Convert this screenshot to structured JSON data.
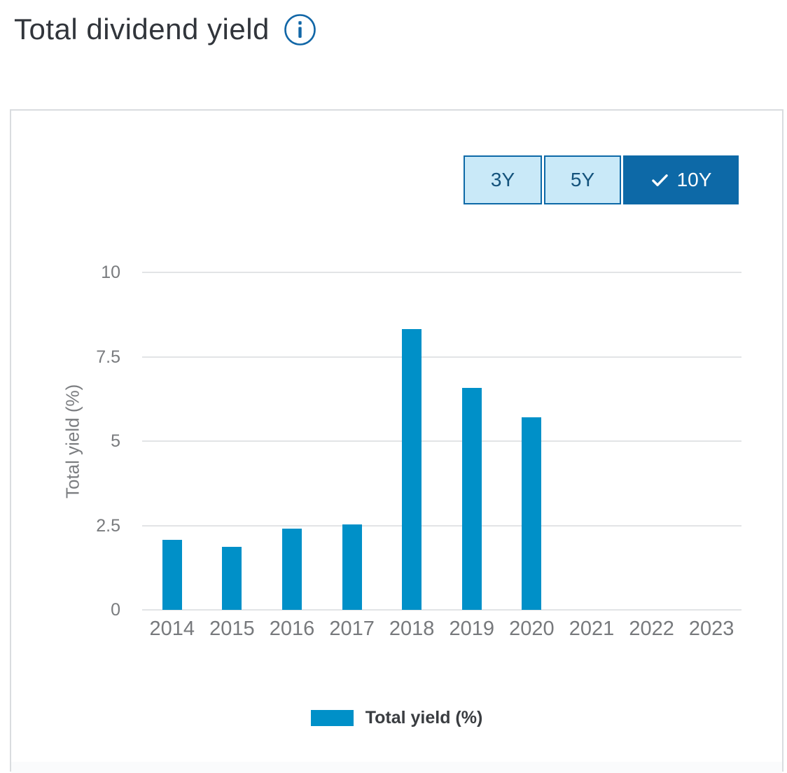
{
  "header": {
    "title": "Total dividend yield"
  },
  "time_range_toggle": {
    "options": [
      {
        "label": "3Y",
        "selected": false
      },
      {
        "label": "5Y",
        "selected": false
      },
      {
        "label": "10Y",
        "selected": true
      }
    ]
  },
  "chart_data": {
    "type": "bar",
    "categories": [
      "2014",
      "2015",
      "2016",
      "2017",
      "2018",
      "2019",
      "2020",
      "2021",
      "2022",
      "2023"
    ],
    "values": [
      2.07,
      1.87,
      2.41,
      2.53,
      8.32,
      6.57,
      5.7,
      null,
      null,
      null
    ],
    "series_name": "Total yield (%)",
    "ylabel": "Total yield (%)",
    "yticks": [
      0,
      2.5,
      5,
      7.5,
      10
    ],
    "ylim": [
      0,
      10
    ],
    "grid": true,
    "legend": {
      "position": "bottom",
      "entries": [
        "Total yield (%)"
      ]
    }
  },
  "colors": {
    "bar": "#0090c8",
    "accent_dark_blue": "#0d69a7",
    "toggle_light_bg": "#c9e9f8",
    "toggle_text": "#14537c",
    "gridline": "#e2e4e6",
    "axis_text": "#797b7e",
    "title_text": "#31353b",
    "legend_text": "#3a3d41",
    "card_border": "#d9dcdf",
    "info_icon": "#1267a7"
  }
}
